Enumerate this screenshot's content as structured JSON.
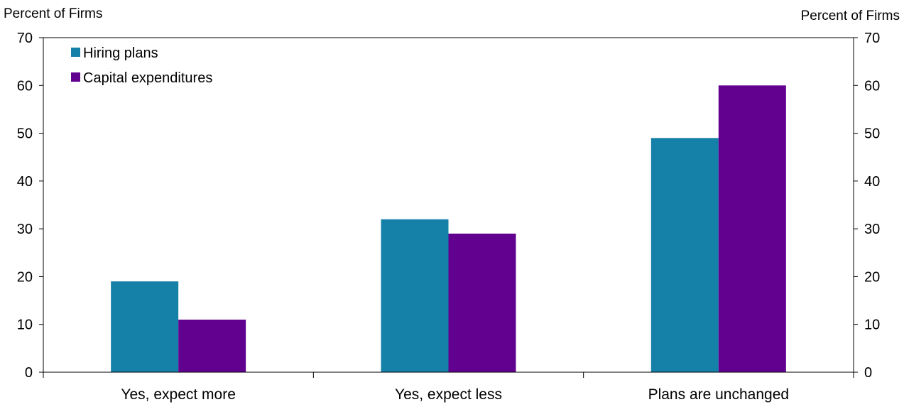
{
  "chart_data": {
    "type": "bar",
    "ylabel_left": "Percent of Firms",
    "ylabel_right": "Percent of Firms",
    "categories": [
      "Yes, expect more",
      "Yes, expect less",
      "Plans are unchanged"
    ],
    "series": [
      {
        "name": "Hiring plans",
        "color": "#1580A8",
        "values": [
          19,
          32,
          49
        ]
      },
      {
        "name": "Capital expenditures",
        "color": "#620090",
        "values": [
          11,
          29,
          60
        ]
      }
    ],
    "ylim": [
      0,
      70
    ],
    "yticks": [
      0,
      10,
      20,
      30,
      40,
      50,
      60,
      70
    ],
    "grid": false,
    "legend_position": "top-left"
  }
}
